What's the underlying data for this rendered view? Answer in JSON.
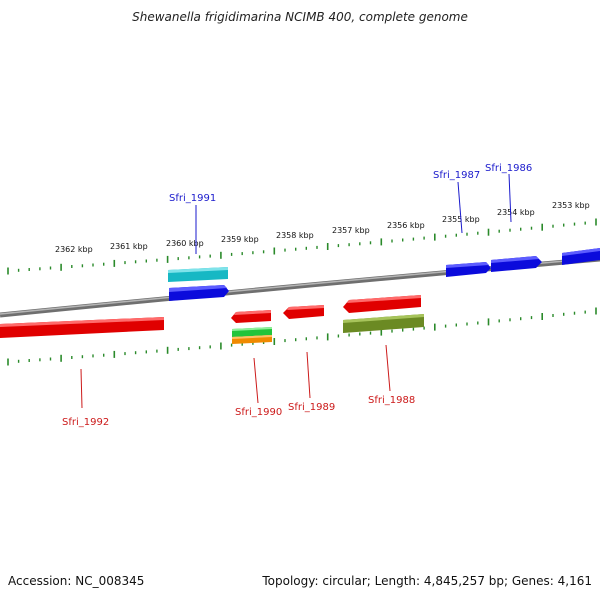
{
  "title": "Shewanella frigidimarina NCIMB 400, complete genome",
  "accession_text": "Accession: NC_008345",
  "topology_text": "Topology: circular; Length: 4,845,257 bp; Genes: 4,161",
  "colors": {
    "backbone": "#888888",
    "tick": "#2a8a2a",
    "forward_label": "#1a1acc",
    "reverse_label": "#cc1a1a"
  },
  "ruler": {
    "unit": "kbp",
    "labels": [
      "2362 kbp",
      "2361 kbp",
      "2360 kbp",
      "2359 kbp",
      "2358 kbp",
      "2357 kbp",
      "2356 kbp",
      "2355 kbp",
      "2354 kbp",
      "2353 kbp"
    ]
  },
  "forward_labels": [
    {
      "id": "Sfri_1991",
      "text": "Sfri_1991"
    },
    {
      "id": "Sfri_1987",
      "text": "Sfri_1987"
    },
    {
      "id": "Sfri_1986",
      "text": "Sfri_1986"
    }
  ],
  "reverse_labels": [
    {
      "id": "Sfri_1992",
      "text": "Sfri_1992"
    },
    {
      "id": "Sfri_1990",
      "text": "Sfri_1990"
    },
    {
      "id": "Sfri_1989",
      "text": "Sfri_1989"
    },
    {
      "id": "Sfri_1988",
      "text": "Sfri_1988"
    }
  ],
  "features": [
    {
      "name": "forward-gene-cyan",
      "color": "cyan"
    },
    {
      "name": "forward-gene-blue",
      "color": "blue"
    },
    {
      "name": "forward-gene-blue",
      "color": "blue"
    },
    {
      "name": "forward-gene-blue",
      "color": "blue"
    },
    {
      "name": "forward-gene-blue",
      "color": "blue"
    },
    {
      "name": "reverse-gene-red",
      "color": "red"
    },
    {
      "name": "reverse-gene-red",
      "color": "red"
    },
    {
      "name": "reverse-gene-red",
      "color": "red"
    },
    {
      "name": "reverse-gene-red",
      "color": "red"
    },
    {
      "name": "reverse-gene-olive",
      "color": "olive"
    },
    {
      "name": "reverse-gene-green",
      "color": "green"
    },
    {
      "name": "reverse-gene-orange",
      "color": "orange"
    }
  ]
}
